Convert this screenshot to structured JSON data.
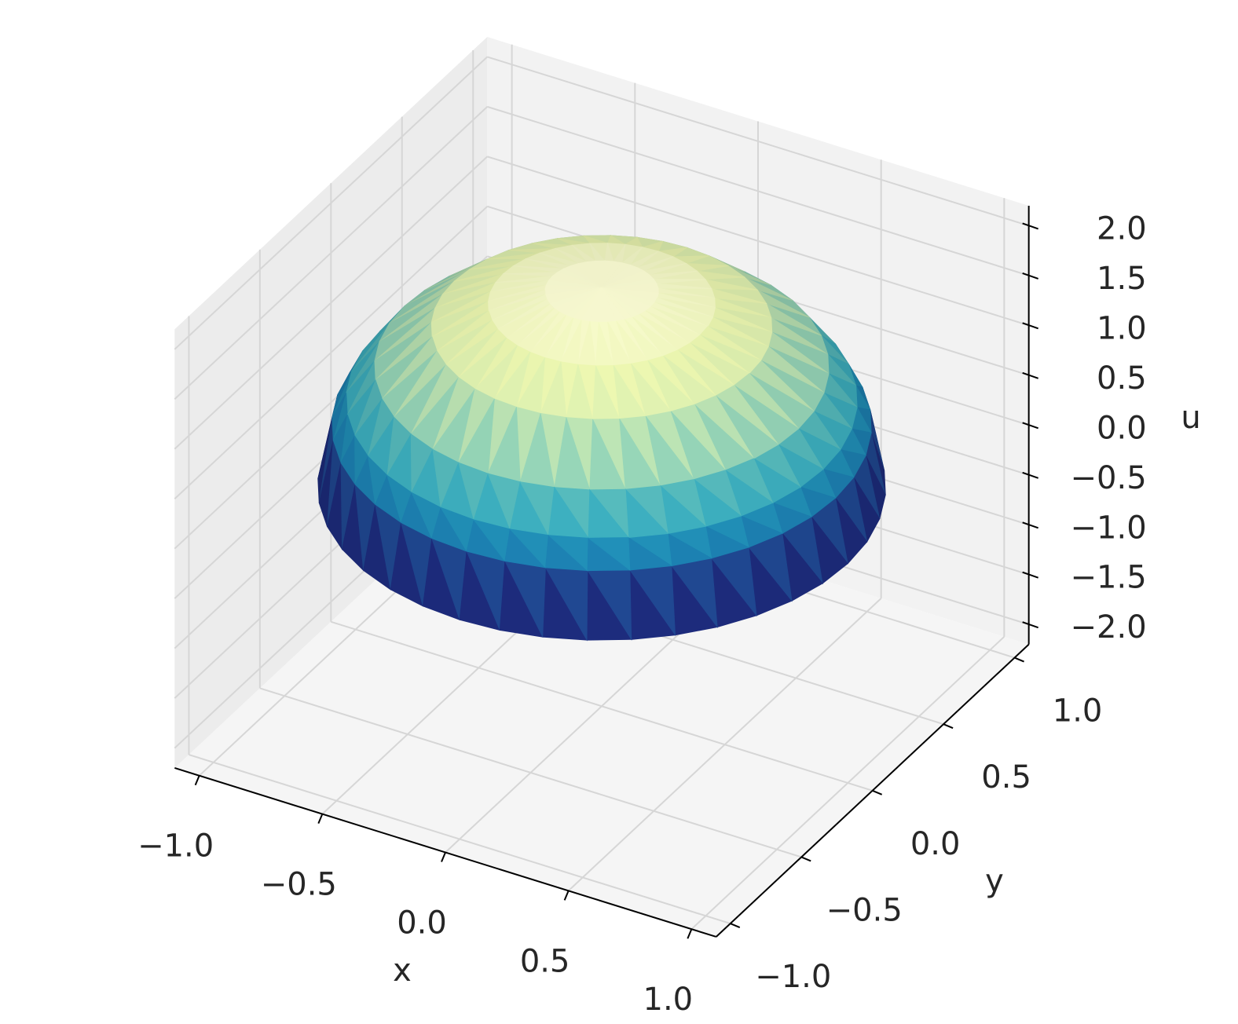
{
  "chart_data": {
    "type": "trisurf3d",
    "x_label": "x",
    "y_label": "y",
    "z_label": "u",
    "colormap": "YlGnBu_r",
    "r": [
      0,
      0.2,
      0.4,
      0.6,
      0.8,
      0.9,
      0.95,
      1.0
    ],
    "u": [
      2.0,
      1.96,
      1.83,
      1.6,
      1.2,
      0.87,
      0.62,
      0.0
    ],
    "xlim": [
      -1.1,
      1.1
    ],
    "ylim": [
      -1.1,
      1.1
    ],
    "zlim": [
      -2.2,
      2.2
    ],
    "xticks": [
      {
        "value": -1,
        "label": "−1.0"
      },
      {
        "value": -0.5,
        "label": "−0.5"
      },
      {
        "value": 0,
        "label": "0.0"
      },
      0.5,
      {
        "value": 1,
        "label": "1.0"
      }
    ],
    "yticks": [
      {
        "value": -1,
        "label": "−1.0"
      },
      {
        "value": -0.5,
        "label": "−0.5"
      },
      {
        "value": 0,
        "label": "0.0"
      },
      0.5,
      {
        "value": 1,
        "label": "1.0"
      }
    ],
    "zticks": [
      {
        "value": -2,
        "label": "−2.0"
      },
      {
        "value": -1.5,
        "label": "−1.5"
      },
      {
        "value": -1,
        "label": "−1.0"
      },
      {
        "value": -0.5,
        "label": "−0.5"
      },
      {
        "value": 0,
        "label": "0.0"
      },
      0.5,
      {
        "value": 1,
        "label": "1.0"
      },
      1.5,
      {
        "value": 2,
        "label": "2.0"
      }
    ],
    "grid": true
  }
}
